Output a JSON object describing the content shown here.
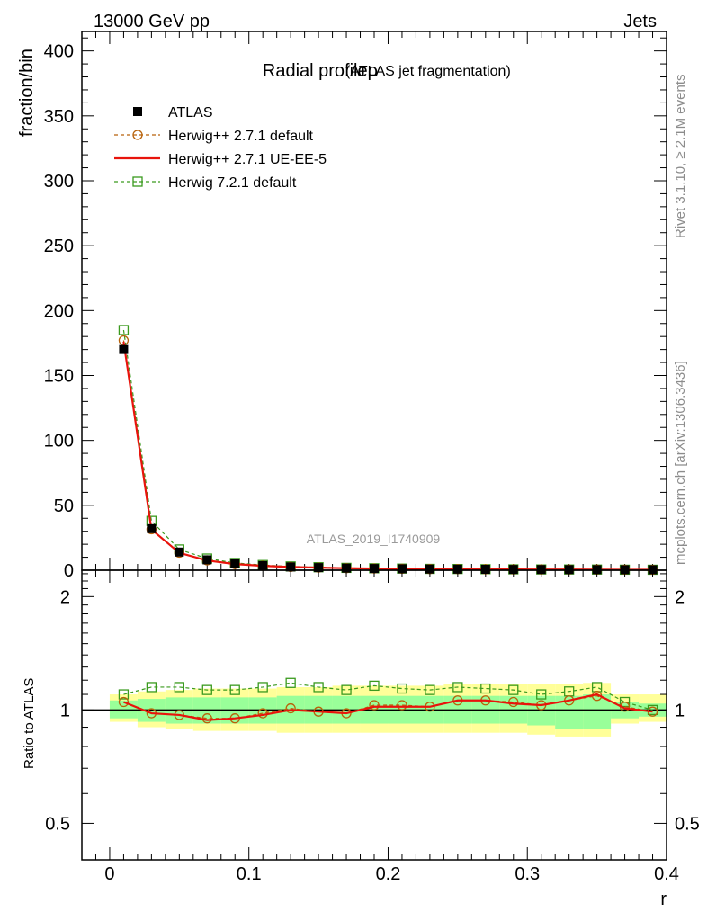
{
  "header": {
    "left": "13000 GeV pp",
    "right": "Jets"
  },
  "side_labels": {
    "rivet": "Rivet 3.1.10, ≥ 2.1M events",
    "mcplots": "mcplots.cern.ch [arXiv:1306.3436]"
  },
  "chart_data": {
    "type": "line",
    "title": "Radial profileρ",
    "subtitle": "(ATLAS jet fragmentation)",
    "watermark": "ATLAS_2019_I1740909",
    "xlabel": "r",
    "ylabel_main": "fraction/bin",
    "ylabel_ratio": "Ratio to ATLAS",
    "xlim": [
      -0.02,
      0.4
    ],
    "ylim_main": [
      0,
      415
    ],
    "ylim_ratio": [
      0.4,
      2.35
    ],
    "ratio_log_scale": true,
    "x_ticks": [
      "0",
      "0.1",
      "0.2",
      "0.3",
      "0.4"
    ],
    "y_ticks_main": [
      "0",
      "50",
      "100",
      "150",
      "200",
      "250",
      "300",
      "350",
      "400"
    ],
    "y_ticks_ratio": [
      "0.5",
      "1",
      "2"
    ],
    "legend_position": "top-left",
    "x": [
      0.01,
      0.03,
      0.05,
      0.07,
      0.09,
      0.11,
      0.13,
      0.15,
      0.17,
      0.19,
      0.21,
      0.23,
      0.25,
      0.27,
      0.29,
      0.31,
      0.33,
      0.35,
      0.37,
      0.39
    ],
    "bin_edges": [
      0,
      0.02,
      0.04,
      0.06,
      0.08,
      0.1,
      0.12,
      0.14,
      0.16,
      0.18,
      0.2,
      0.22,
      0.24,
      0.26,
      0.28,
      0.3,
      0.32,
      0.34,
      0.36,
      0.38,
      0.4
    ],
    "band_inner": [
      [
        0.95,
        1.06
      ],
      [
        0.93,
        1.07
      ],
      [
        0.92,
        1.08
      ],
      [
        0.92,
        1.08
      ],
      [
        0.92,
        1.08
      ],
      [
        0.92,
        1.08
      ],
      [
        0.92,
        1.09
      ],
      [
        0.92,
        1.09
      ],
      [
        0.92,
        1.09
      ],
      [
        0.92,
        1.09
      ],
      [
        0.92,
        1.09
      ],
      [
        0.92,
        1.09
      ],
      [
        0.92,
        1.09
      ],
      [
        0.92,
        1.09
      ],
      [
        0.92,
        1.09
      ],
      [
        0.91,
        1.09
      ],
      [
        0.89,
        1.09
      ],
      [
        0.89,
        1.1
      ],
      [
        0.95,
        1.05
      ],
      [
        0.96,
        1.04
      ]
    ],
    "band_outer": [
      [
        0.93,
        1.1
      ],
      [
        0.9,
        1.12
      ],
      [
        0.89,
        1.13
      ],
      [
        0.88,
        1.14
      ],
      [
        0.88,
        1.14
      ],
      [
        0.88,
        1.14
      ],
      [
        0.87,
        1.15
      ],
      [
        0.87,
        1.15
      ],
      [
        0.87,
        1.16
      ],
      [
        0.87,
        1.16
      ],
      [
        0.87,
        1.16
      ],
      [
        0.87,
        1.16
      ],
      [
        0.87,
        1.17
      ],
      [
        0.87,
        1.17
      ],
      [
        0.87,
        1.17
      ],
      [
        0.86,
        1.17
      ],
      [
        0.85,
        1.17
      ],
      [
        0.85,
        1.18
      ],
      [
        0.92,
        1.1
      ],
      [
        0.93,
        1.1
      ]
    ],
    "series": [
      {
        "name": "ATLAS",
        "color": "#000000",
        "marker": "filled-square",
        "values": [
          170,
          32,
          14,
          8,
          5,
          3.5,
          2.5,
          2,
          1.6,
          1.3,
          1.1,
          0.9,
          0.8,
          0.7,
          0.6,
          0.55,
          0.5,
          0.45,
          0.4,
          0.38
        ],
        "ratio": [
          1,
          1,
          1,
          1,
          1,
          1,
          1,
          1,
          1,
          1,
          1,
          1,
          1,
          1,
          1,
          1,
          1,
          1,
          1,
          1
        ]
      },
      {
        "name": "Herwig++ 2.7.1 default",
        "color": "#b8620a",
        "marker": "open-circle",
        "dashed": true,
        "values": [
          177,
          31.5,
          13.5,
          7.6,
          4.8,
          3.4,
          2.5,
          2.0,
          1.55,
          1.3,
          1.1,
          0.9,
          0.83,
          0.73,
          0.62,
          0.56,
          0.52,
          0.48,
          0.4,
          0.37
        ],
        "ratio": [
          1.05,
          0.98,
          0.97,
          0.95,
          0.95,
          0.98,
          1.01,
          0.99,
          0.98,
          1.03,
          1.03,
          1.02,
          1.06,
          1.06,
          1.05,
          1.03,
          1.06,
          1.09,
          1.02,
          0.99
        ]
      },
      {
        "name": "Herwig++ 2.7.1 UE-EE-5",
        "color": "#e8140c",
        "marker": "none",
        "values": [
          176,
          31.4,
          13.4,
          7.5,
          4.75,
          3.4,
          2.5,
          2.0,
          1.55,
          1.3,
          1.1,
          0.9,
          0.83,
          0.73,
          0.62,
          0.56,
          0.52,
          0.48,
          0.4,
          0.37
        ],
        "ratio": [
          1.05,
          0.98,
          0.97,
          0.94,
          0.95,
          0.97,
          1.0,
          0.99,
          0.98,
          1.02,
          1.02,
          1.02,
          1.06,
          1.06,
          1.04,
          1.03,
          1.06,
          1.1,
          1.01,
          0.99
        ]
      },
      {
        "name": "Herwig 7.2.1 default",
        "color": "#3a9a1e",
        "marker": "open-square",
        "dashed": true,
        "values": [
          185,
          38,
          16,
          9,
          5.6,
          4.0,
          2.9,
          2.3,
          1.8,
          1.5,
          1.25,
          1.03,
          0.94,
          0.81,
          0.69,
          0.6,
          0.56,
          0.52,
          0.42,
          0.38
        ],
        "ratio": [
          1.1,
          1.15,
          1.15,
          1.13,
          1.13,
          1.15,
          1.18,
          1.15,
          1.13,
          1.16,
          1.14,
          1.13,
          1.15,
          1.14,
          1.13,
          1.1,
          1.12,
          1.15,
          1.05,
          1.0
        ]
      }
    ]
  }
}
